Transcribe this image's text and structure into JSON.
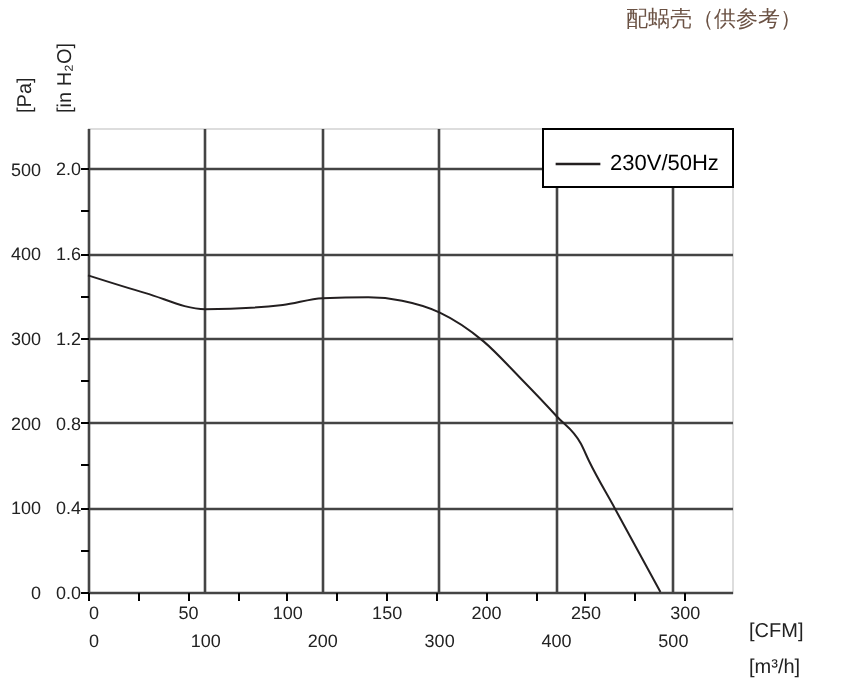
{
  "chart_data": {
    "type": "line",
    "title": "配蜗壳（供参考）",
    "x": [
      0,
      29,
      59,
      98,
      118,
      141,
      158,
      177,
      199,
      217,
      236,
      248,
      252,
      265,
      288
    ],
    "series": [
      {
        "name": "230V/50Hz",
        "color": "#231f20",
        "values": [
          374,
          353,
          334,
          339,
          347,
          348,
          344,
          330,
          296,
          254,
          207,
          175,
          155,
          99,
          0
        ]
      }
    ],
    "xlim": [
      0,
      324
    ],
    "xticks": [
      0,
      {
        "value": 25,
        "label": null
      },
      50,
      {
        "value": 75,
        "label": null
      },
      100,
      {
        "value": 125,
        "label": null
      },
      150,
      {
        "value": 175,
        "label": null
      },
      200,
      {
        "value": 225,
        "label": null
      },
      250,
      {
        "value": 275,
        "label": null
      },
      300
    ],
    "xlabel": "[CFM]",
    "x2lim": [
      0,
      551
    ],
    "x2ticks": [
      0,
      100,
      200,
      300,
      400,
      500
    ],
    "x2label": "[m³/h]",
    "ylim": [
      0,
      548
    ],
    "yticks": [
      0,
      {
        "value": 50,
        "label": null
      },
      100,
      {
        "value": 150,
        "label": null
      },
      200,
      {
        "value": 250,
        "label": null
      },
      300,
      {
        "value": 350,
        "label": null
      },
      400,
      {
        "value": 450,
        "label": null
      },
      500
    ],
    "ylabel": "[Pa]",
    "y2lim": [
      0,
      2.19
    ],
    "y2ticks": [
      {
        "value": 0,
        "label": "0.0"
      },
      {
        "value": 0.4,
        "label": "0.4"
      },
      {
        "value": 0.8,
        "label": "0.8"
      },
      {
        "value": 1.2,
        "label": "1.2"
      },
      {
        "value": 1.6,
        "label": "1.6"
      },
      {
        "value": 2,
        "label": "2.0"
      }
    ],
    "y2label": "[in H₂O]",
    "grid": true,
    "legend": "top right",
    "marker": "none",
    "line_style": "solid"
  }
}
